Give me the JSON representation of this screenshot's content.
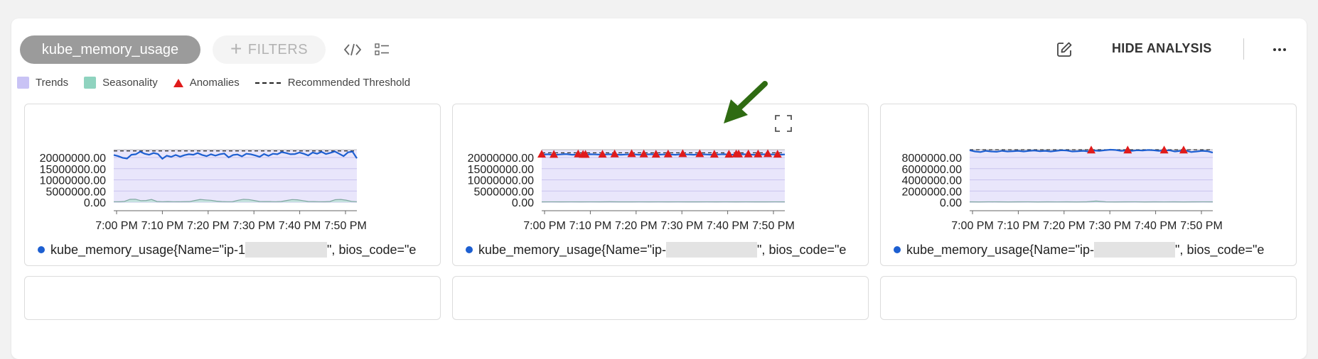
{
  "toolbar": {
    "metric_name": "kube_memory_usage",
    "filters_label": "FILTERS",
    "hide_analysis_label": "HIDE ANALYSIS"
  },
  "legend": [
    {
      "label": "Trends",
      "color": "#c9c3f5"
    },
    {
      "label": "Seasonality",
      "color": "#8fd3bf"
    },
    {
      "label": "Anomalies",
      "color": "#e01b1b"
    },
    {
      "label": "Recommended Threshold",
      "color": "#222222"
    }
  ],
  "colors": {
    "series_line": "#1d5fd1",
    "seasonality": "#b8e2d4",
    "trend_band": "#e9e6fb",
    "anomaly": "#e01b1b",
    "pill": "#9b9b9b"
  },
  "cards": [
    {
      "label_prefix": "kube_memory_usage{Name=\"ip-1",
      "label_suffix": "\", bios_code=\"e",
      "x_ticks": [
        "7:00 PM",
        "7:10 PM",
        "7:20 PM",
        "7:30 PM",
        "7:40 PM",
        "7:50 PM"
      ]
    },
    {
      "label_prefix": "kube_memory_usage{Name=\"ip-",
      "label_suffix": "\", bios_code=\"e",
      "x_ticks": [
        "7:00 PM",
        "7:10 PM",
        "7:20 PM",
        "7:30 PM",
        "7:40 PM",
        "7:50 PM"
      ]
    },
    {
      "label_prefix": "kube_memory_usage{Name=\"ip-",
      "label_suffix": "\", bios_code=\"e",
      "x_ticks": [
        "7:00 PM",
        "7:10 PM",
        "7:20 PM",
        "7:30 PM",
        "7:40 PM",
        "7:50 PM"
      ]
    }
  ],
  "chart_data": [
    {
      "type": "line",
      "y_ticks": [
        "20000000.00",
        "15000000.00",
        "10000000.00",
        "5000000.00",
        "0.00"
      ],
      "ylim": [
        0,
        22000000
      ],
      "threshold": 21500000,
      "series": [
        {
          "values": [
            19800000,
            19300000,
            18600000,
            18300000,
            19900000,
            20100000,
            21200000,
            20300000,
            19900000,
            20600000,
            20200000,
            18200000,
            19500000,
            19000000,
            19800000,
            19100000,
            19700000,
            20100000,
            19900000,
            20600000,
            19800000,
            19300000,
            20100000,
            19500000,
            20100000,
            20400000,
            18800000,
            19800000,
            20000000,
            19200000,
            20300000,
            20100000,
            19600000,
            19000000,
            20200000,
            19400000,
            20300000,
            20100000,
            21000000,
            20600000,
            20100000,
            20200000,
            20800000,
            20300000,
            19600000,
            20800000,
            20300000,
            21100000,
            20200000,
            20700000,
            21300000,
            20300000,
            19300000,
            20900000,
            21200000,
            18400000
          ]
        },
        {
          "values": [
            200000,
            180000,
            350000,
            1200000,
            1250000,
            650000,
            700000,
            1150000,
            300000,
            200000,
            250000,
            200000,
            180000,
            220000,
            250000,
            700000,
            1150000,
            950000,
            800000,
            450000,
            250000,
            200000,
            220000,
            800000,
            1200000,
            1100000,
            700000,
            300000,
            250000,
            250000,
            200000,
            300000,
            700000,
            1100000,
            1000000,
            650000,
            300000,
            250000,
            200000,
            180000,
            300000,
            1050000,
            1150000,
            850000,
            350000,
            200000
          ]
        }
      ]
    },
    {
      "type": "line",
      "y_ticks": [
        "20000000.00",
        "15000000.00",
        "10000000.00",
        "5000000.00",
        "0.00"
      ],
      "ylim": [
        0,
        22000000
      ],
      "threshold": 20700000,
      "series": [
        {
          "values": [
            19900000,
            20100000,
            19800000,
            20000000,
            20200000,
            19900000,
            20000000,
            19800000,
            20100000,
            20000000,
            19900000,
            20100000,
            20000000,
            19900000,
            20000000,
            20100000,
            19900000,
            20000000,
            20100000,
            19900000,
            20000000,
            20000000,
            19900000,
            20100000,
            20000000,
            19900000,
            20100000,
            20000000,
            19900000,
            20000000,
            20100000,
            19900000,
            20000000,
            20100000,
            20000000,
            19900000,
            20000000,
            20100000,
            20000000,
            19900000,
            20000000
          ]
        },
        {
          "values": [
            150000,
            160000,
            140000,
            170000,
            150000,
            160000,
            150000,
            180000,
            150000,
            140000,
            160000,
            150000,
            170000,
            150000,
            160000,
            150000,
            140000,
            160000,
            150000,
            170000,
            150000,
            160000,
            150000,
            140000,
            160000,
            150000
          ]
        }
      ],
      "anomalies_x": [
        0,
        0.05,
        0.15,
        0.17,
        0.18,
        0.25,
        0.3,
        0.37,
        0.42,
        0.47,
        0.52,
        0.58,
        0.65,
        0.71,
        0.77,
        0.8,
        0.81,
        0.85,
        0.89,
        0.93,
        0.97
      ]
    },
    {
      "type": "line",
      "y_ticks": [
        "8000000.00",
        "6000000.00",
        "4000000.00",
        "2000000.00",
        "0.00"
      ],
      "ylim": [
        0,
        9000000
      ],
      "threshold": 9000000,
      "series": [
        {
          "values": [
            8900000,
            8700000,
            8600000,
            8800000,
            8700000,
            8650000,
            8800000,
            8700000,
            8750000,
            8800000,
            8700000,
            8800000,
            8850000,
            8750000,
            8800000,
            8700000,
            8800000,
            8900000,
            8850000,
            8700000,
            8750000,
            8800000,
            8700000,
            8850000,
            8800000,
            8900000,
            9000000,
            8950000,
            8800000,
            8850000,
            8800000,
            8900000,
            8850000,
            8950000,
            8900000,
            8800000,
            8850000,
            8900000,
            8700000,
            8800000,
            8850000,
            8600000,
            8700000,
            8800000,
            8750000,
            8500000
          ]
        },
        {
          "values": [
            60000,
            50000,
            70000,
            60000,
            50000,
            60000,
            70000,
            50000,
            60000,
            55000,
            65000,
            50000,
            60000,
            200000,
            60000,
            50000,
            60000,
            70000,
            50000,
            60000,
            55000,
            60000,
            50000,
            60000,
            70000,
            60000
          ]
        }
      ],
      "anomalies_x": [
        0.5,
        0.65,
        0.8,
        0.88
      ]
    }
  ]
}
